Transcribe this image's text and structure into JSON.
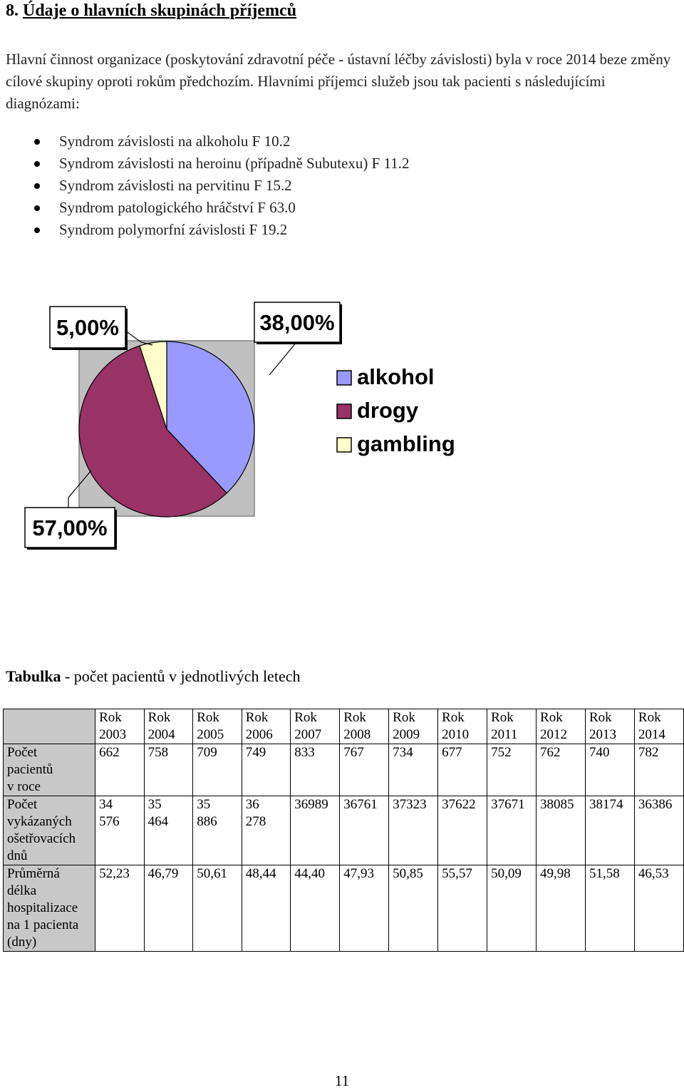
{
  "heading": {
    "number": "8.",
    "title": "Údaje o hlavních skupinách příjemců"
  },
  "intro": "Hlavní činnost organizace (poskytování zdravotní péče - ústavní léčby závislosti) byla v roce 2014 beze změny cílové skupiny oproti rokům předchozím. Hlavními příjemci služeb jsou tak pacienti s následujícími diagnózami:",
  "bullets": [
    "Syndrom závislosti na alkoholu F 10.2",
    "Syndrom závislosti na heroinu (případně Subutexu) F 11.2",
    "Syndrom závislosti na pervitinu F 15.2",
    "Syndrom patologického hráčství F 63.0",
    "Syndrom polymorfní závislosti F 19.2"
  ],
  "chart_data": {
    "type": "pie",
    "categories": [
      "alkohol",
      "drogy",
      "gambling"
    ],
    "values": [
      38,
      57,
      5
    ],
    "data_labels": [
      "38,00%",
      "57,00%",
      "5,00%"
    ],
    "colors": [
      "#9999ff",
      "#993366",
      "#ffffcc"
    ],
    "legend": "right",
    "background": "#c0c0c0"
  },
  "table": {
    "caption_bold": "Tabulka",
    "caption_rest": " - počet pacientů v jednotlivých letech",
    "columns": [
      [
        "Rok",
        "2003"
      ],
      [
        "Rok",
        "2004"
      ],
      [
        "Rok",
        "2005"
      ],
      [
        "Rok",
        "2006"
      ],
      [
        "Rok",
        "2007"
      ],
      [
        "Rok",
        "2008"
      ],
      [
        "Rok",
        "2009"
      ],
      [
        "Rok",
        "2010"
      ],
      [
        "Rok",
        "2011"
      ],
      [
        "Rok",
        "2012"
      ],
      [
        "Rok",
        "2013"
      ],
      [
        "Rok",
        "2014"
      ]
    ],
    "rows": [
      {
        "label": [
          "Počet",
          "pacientů",
          "v roce"
        ],
        "cells": [
          [
            "662"
          ],
          [
            "758"
          ],
          [
            "709"
          ],
          [
            "749"
          ],
          [
            "833"
          ],
          [
            "767"
          ],
          [
            "734"
          ],
          [
            "677"
          ],
          [
            "752"
          ],
          [
            "762"
          ],
          [
            "740"
          ],
          [
            "782"
          ]
        ]
      },
      {
        "label": [
          "Počet",
          "vykázaných",
          "ošetřovacích",
          "dnů"
        ],
        "cells": [
          [
            "34",
            "576"
          ],
          [
            "35",
            "464"
          ],
          [
            "35",
            "886"
          ],
          [
            "36",
            "278"
          ],
          [
            "36989"
          ],
          [
            "36761"
          ],
          [
            "37323"
          ],
          [
            "37622"
          ],
          [
            "37671"
          ],
          [
            "38085"
          ],
          [
            "38174"
          ],
          [
            "36386"
          ]
        ]
      },
      {
        "label": [
          "Průměrná",
          "délka",
          "hospitalizace",
          "na 1 pacienta",
          "(dny)"
        ],
        "cells": [
          [
            "52,23"
          ],
          [
            "46,79"
          ],
          [
            "50,61"
          ],
          [
            "48,44"
          ],
          [
            "44,40"
          ],
          [
            "47,93"
          ],
          [
            "50,85"
          ],
          [
            "55,57"
          ],
          [
            "50,09"
          ],
          [
            "49,98"
          ],
          [
            "51,58"
          ],
          [
            "46,53"
          ]
        ]
      }
    ]
  },
  "page_number": "11"
}
